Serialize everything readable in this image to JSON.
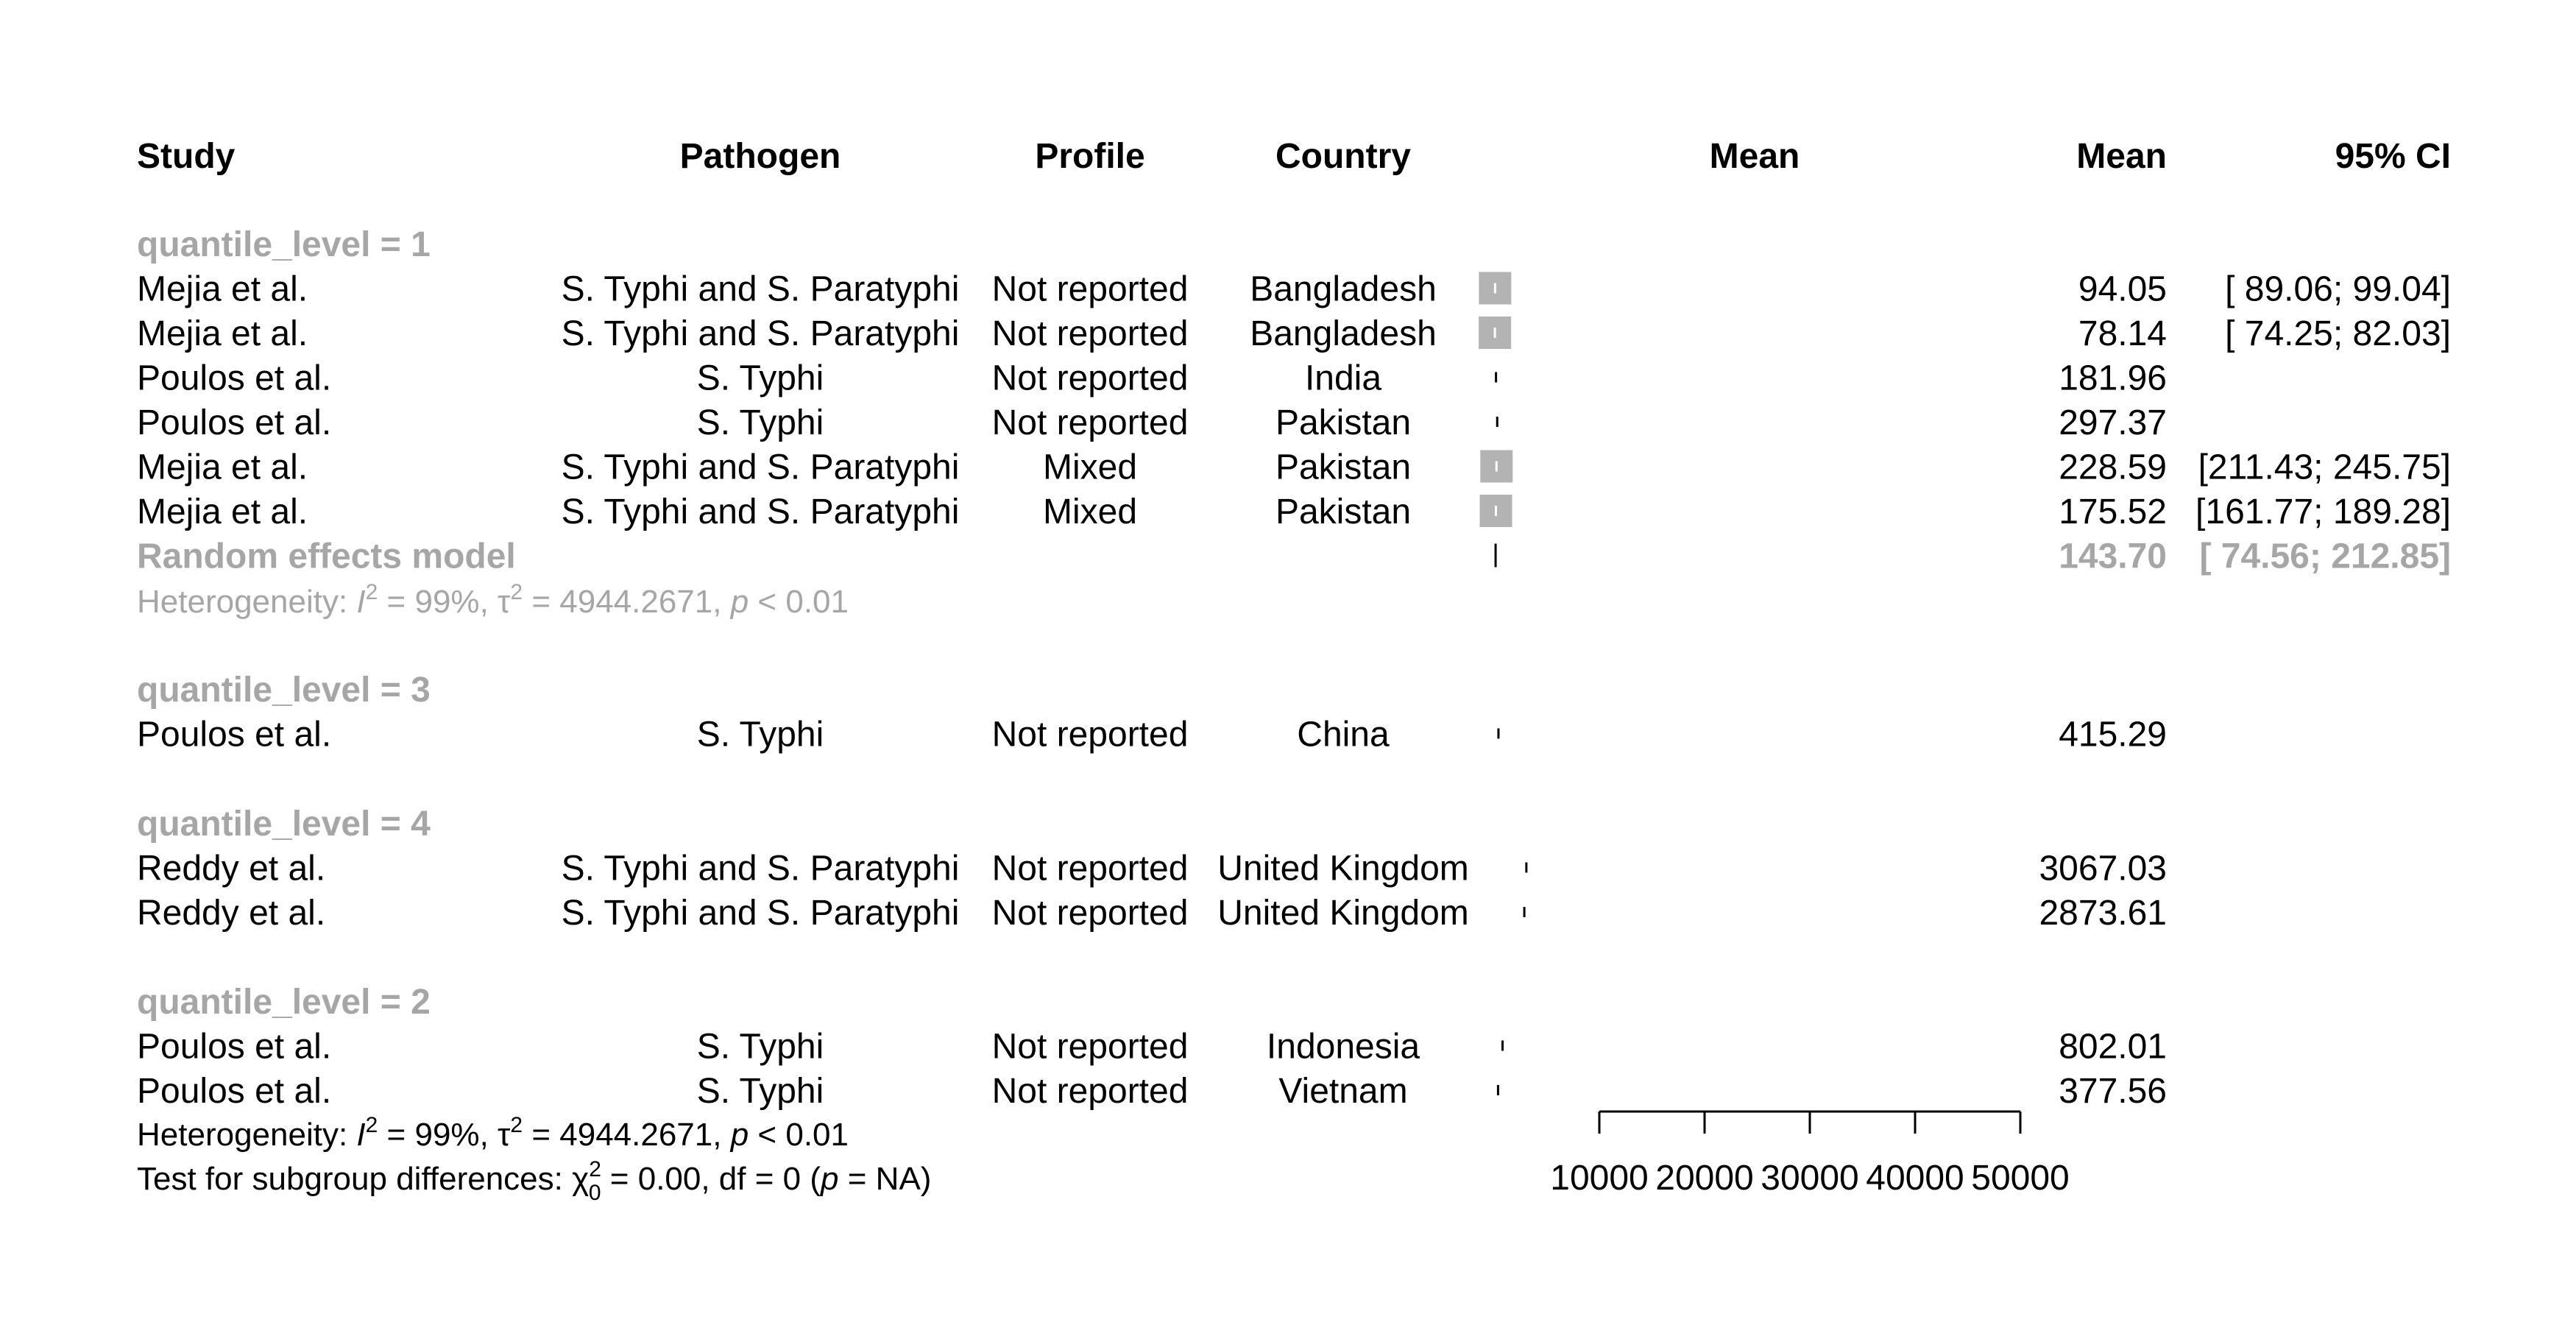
{
  "headers": {
    "study": "Study",
    "pathogen": "Pathogen",
    "profile": "Profile",
    "country": "Country",
    "plot_mean": "Mean",
    "mean": "Mean",
    "ci": "95% CI"
  },
  "groups": [
    {
      "label": "quantile_level = 1",
      "rows": [
        {
          "study": "Mejia et al.",
          "pathogen": "S. Typhi and S. Paratyphi",
          "profile": "Not reported",
          "country": "Bangladesh",
          "mean": "94.05",
          "ci": "[ 89.06;  99.04]"
        },
        {
          "study": "Mejia et al.",
          "pathogen": "S. Typhi and S. Paratyphi",
          "profile": "Not reported",
          "country": "Bangladesh",
          "mean": "78.14",
          "ci": "[ 74.25;  82.03]"
        },
        {
          "study": "Poulos et al.",
          "pathogen": "S. Typhi",
          "profile": "Not reported",
          "country": "India",
          "mean": "181.96",
          "ci": ""
        },
        {
          "study": "Poulos et al.",
          "pathogen": "S. Typhi",
          "profile": "Not reported",
          "country": "Pakistan",
          "mean": "297.37",
          "ci": ""
        },
        {
          "study": "Mejia et al.",
          "pathogen": "S. Typhi and S. Paratyphi",
          "profile": "Mixed",
          "country": "Pakistan",
          "mean": "228.59",
          "ci": "[211.43; 245.75]"
        },
        {
          "study": "Mejia et al.",
          "pathogen": "S. Typhi and S. Paratyphi",
          "profile": "Mixed",
          "country": "Pakistan",
          "mean": "175.52",
          "ci": "[161.77; 189.28]"
        }
      ],
      "pooled": {
        "label": "Random effects model",
        "mean": "143.70",
        "ci": "[ 74.56; 212.85]"
      },
      "heterogeneity": {
        "i2": "99%",
        "tau2": "4944.2671",
        "p": "< 0.01"
      }
    },
    {
      "label": "quantile_level = 3",
      "rows": [
        {
          "study": "Poulos et al.",
          "pathogen": "S. Typhi",
          "profile": "Not reported",
          "country": "China",
          "mean": "415.29",
          "ci": ""
        }
      ]
    },
    {
      "label": "quantile_level = 4",
      "rows": [
        {
          "study": "Reddy et al.",
          "pathogen": "S. Typhi and S. Paratyphi",
          "profile": "Not reported",
          "country": "United Kingdom",
          "mean": "3067.03",
          "ci": ""
        },
        {
          "study": "Reddy et al.",
          "pathogen": "S. Typhi and S. Paratyphi",
          "profile": "Not reported",
          "country": "United Kingdom",
          "mean": "2873.61",
          "ci": ""
        }
      ]
    },
    {
      "label": "quantile_level = 2",
      "rows": [
        {
          "study": "Poulos et al.",
          "pathogen": "S. Typhi",
          "profile": "Not reported",
          "country": "Indonesia",
          "mean": "802.01",
          "ci": ""
        },
        {
          "study": "Poulos et al.",
          "pathogen": "S. Typhi",
          "profile": "Not reported",
          "country": "Vietnam",
          "mean": "377.56",
          "ci": ""
        }
      ]
    }
  ],
  "overall_heterogeneity": {
    "i2": "99%",
    "tau2": "4944.2671",
    "p": "< 0.01"
  },
  "subgroup_test": {
    "chi2": "0.00",
    "df": "0",
    "p": "NA"
  },
  "colors": {
    "text": "#000000",
    "group_grey": "#a6a6a6",
    "box": "#b3b3b3"
  },
  "chart_data": {
    "type": "forest",
    "xlim": [
      0,
      50000
    ],
    "x_ticks": [
      10000,
      20000,
      30000,
      40000,
      50000
    ],
    "x_tick_labels": [
      "10000",
      "20000",
      "30000",
      "40000",
      "50000"
    ],
    "points": [
      {
        "group": "quantile_level = 1",
        "mean": 94.05,
        "lower": 89.06,
        "upper": 99.04
      },
      {
        "group": "quantile_level = 1",
        "mean": 78.14,
        "lower": 74.25,
        "upper": 82.03
      },
      {
        "group": "quantile_level = 1",
        "mean": 181.96,
        "lower": null,
        "upper": null
      },
      {
        "group": "quantile_level = 1",
        "mean": 297.37,
        "lower": null,
        "upper": null
      },
      {
        "group": "quantile_level = 1",
        "mean": 228.59,
        "lower": 211.43,
        "upper": 245.75
      },
      {
        "group": "quantile_level = 1",
        "mean": 175.52,
        "lower": 161.77,
        "upper": 189.28
      },
      {
        "group": "quantile_level = 3",
        "mean": 415.29,
        "lower": null,
        "upper": null
      },
      {
        "group": "quantile_level = 4",
        "mean": 3067.03,
        "lower": null,
        "upper": null
      },
      {
        "group": "quantile_level = 4",
        "mean": 2873.61,
        "lower": null,
        "upper": null
      },
      {
        "group": "quantile_level = 2",
        "mean": 802.01,
        "lower": null,
        "upper": null
      },
      {
        "group": "quantile_level = 2",
        "mean": 377.56,
        "lower": null,
        "upper": null
      }
    ],
    "pooled": [
      {
        "group": "quantile_level = 1",
        "mean": 143.7,
        "lower": 74.56,
        "upper": 212.85
      }
    ]
  }
}
